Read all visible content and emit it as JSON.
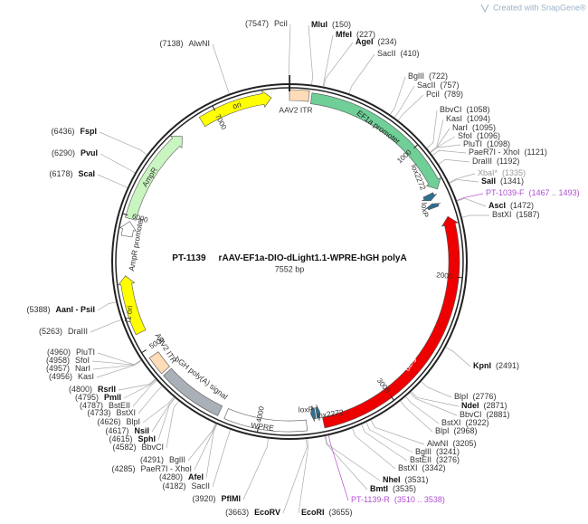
{
  "watermark": "Created with SnapGene®",
  "plasmid": {
    "name": "PT-1139",
    "title": "rAAV-EF1a-DIO-dLight1.1-WPRE-hGH polyA",
    "size": "7552 bp"
  },
  "ticks": [
    1000,
    2000,
    3000,
    4000,
    5000,
    6000,
    7000
  ],
  "features": [
    {
      "name": "ori"
    },
    {
      "name": "AAV2 ITR"
    },
    {
      "name": "EF1a promoter"
    },
    {
      "name": "lox2272"
    },
    {
      "name": "loxP"
    },
    {
      "name": "dLight1.1"
    },
    {
      "name": "loxP"
    },
    {
      "name": "lox2272"
    },
    {
      "name": "WPRE"
    },
    {
      "name": "hGH poly(A) signal"
    },
    {
      "name": "AAV2 ITR"
    },
    {
      "name": "f1 ori"
    },
    {
      "name": "AmpR promoter"
    },
    {
      "name": "AmpR"
    }
  ],
  "sites": [
    {
      "name": "PciI",
      "pos": "(7547)"
    },
    {
      "name": "AlwNI",
      "pos": "(7138)"
    },
    {
      "name": "MluI",
      "pos": "(150)"
    },
    {
      "name": "MfeI",
      "pos": "(227)"
    },
    {
      "name": "AgeI",
      "pos": "(234)"
    },
    {
      "name": "SacII",
      "pos": "(410)"
    },
    {
      "name": "BglII",
      "pos": "(722)"
    },
    {
      "name": "SacII",
      "pos": "(757)"
    },
    {
      "name": "PciI",
      "pos": "(789)"
    },
    {
      "name": "BbvCI",
      "pos": "(1058)"
    },
    {
      "name": "KasI",
      "pos": "(1094)"
    },
    {
      "name": "NarI",
      "pos": "(1095)"
    },
    {
      "name": "SfoI",
      "pos": "(1096)"
    },
    {
      "name": "PluTI",
      "pos": "(1098)"
    },
    {
      "name": "PaeR7I - XhoI",
      "pos": "(1121)"
    },
    {
      "name": "DraIII",
      "pos": "(1192)"
    },
    {
      "name": "XbaI*",
      "pos": "(1335)"
    },
    {
      "name": "SalI",
      "pos": "(1341)"
    },
    {
      "name": "PT-1039-F",
      "pos": "(1467 .. 1493)"
    },
    {
      "name": "AscI",
      "pos": "(1472)"
    },
    {
      "name": "BstXI",
      "pos": "(1587)"
    },
    {
      "name": "KpnI",
      "pos": "(2491)"
    },
    {
      "name": "BlpI",
      "pos": "(2776)"
    },
    {
      "name": "NdeI",
      "pos": "(2871)"
    },
    {
      "name": "BbvCI",
      "pos": "(2881)"
    },
    {
      "name": "BstXI",
      "pos": "(2922)"
    },
    {
      "name": "BlpI",
      "pos": "(2968)"
    },
    {
      "name": "AlwNI",
      "pos": "(3205)"
    },
    {
      "name": "BglII",
      "pos": "(3241)"
    },
    {
      "name": "BstEII",
      "pos": "(3276)"
    },
    {
      "name": "BstXI",
      "pos": "(3342)"
    },
    {
      "name": "NheI",
      "pos": "(3531)"
    },
    {
      "name": "BmtI",
      "pos": "(3535)"
    },
    {
      "name": "PT-1139-R",
      "pos": "(3510 .. 3538)"
    },
    {
      "name": "EcoRI",
      "pos": "(3655)"
    },
    {
      "name": "EcoRV",
      "pos": "(3663)"
    },
    {
      "name": "PflMI",
      "pos": "(3920)"
    },
    {
      "name": "SacII",
      "pos": "(4182)"
    },
    {
      "name": "BglII",
      "pos": "(4291)"
    },
    {
      "name": "PaeR7I - XhoI",
      "pos": "(4285)"
    },
    {
      "name": "AfeI",
      "pos": "(4280)"
    },
    {
      "name": "BbvCI",
      "pos": "(4582)"
    },
    {
      "name": "SphI",
      "pos": "(4615)"
    },
    {
      "name": "NsiI",
      "pos": "(4617)"
    },
    {
      "name": "BlpI",
      "pos": "(4626)"
    },
    {
      "name": "BstXI",
      "pos": "(4733)"
    },
    {
      "name": "BstEII",
      "pos": "(4787)"
    },
    {
      "name": "PmlI",
      "pos": "(4795)"
    },
    {
      "name": "RsrII",
      "pos": "(4800)"
    },
    {
      "name": "KasI",
      "pos": "(4956)"
    },
    {
      "name": "NarI",
      "pos": "(4957)"
    },
    {
      "name": "SfoI",
      "pos": "(4958)"
    },
    {
      "name": "PluTI",
      "pos": "(4960)"
    },
    {
      "name": "DraIII",
      "pos": "(5263)"
    },
    {
      "name": "AanI - PsiI",
      "pos": "(5388)"
    },
    {
      "name": "ScaI",
      "pos": "(6178)"
    },
    {
      "name": "PvuI",
      "pos": "(6290)"
    },
    {
      "name": "FspI",
      "pos": "(6436)"
    }
  ]
}
